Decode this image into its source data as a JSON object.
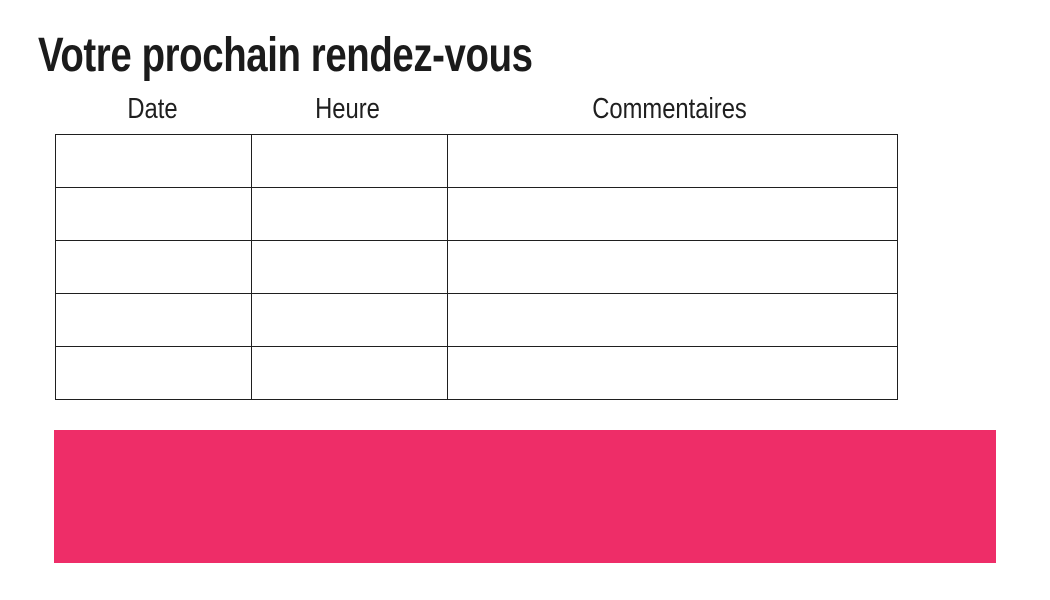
{
  "title": "Votre prochain rendez-vous",
  "table": {
    "headers": [
      "Date",
      "Heure",
      "Commentaires"
    ],
    "rows": [
      [
        "",
        "",
        ""
      ],
      [
        "",
        "",
        ""
      ],
      [
        "",
        "",
        ""
      ],
      [
        "",
        "",
        ""
      ],
      [
        "",
        "",
        ""
      ]
    ]
  },
  "banner": {
    "text": ""
  },
  "colors": {
    "accent_pink": "#EE2D68",
    "text": "#1b1b1b",
    "table_border": "#1f1f1f"
  }
}
